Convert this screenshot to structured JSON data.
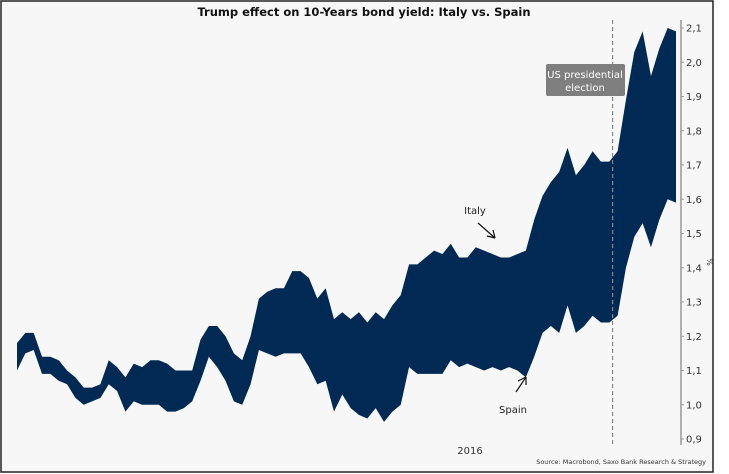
{
  "chart_data": {
    "type": "area",
    "title": "Trump effect on 10-Years bond yield: Italy vs. Spain",
    "xlabel": "",
    "ylabel": "%",
    "x_tick_labels": [
      "2016"
    ],
    "x_unit": "week index",
    "x": [
      0,
      1,
      2,
      3,
      4,
      5,
      6,
      7,
      8,
      9,
      10,
      11,
      12,
      13,
      14,
      15,
      16,
      17,
      18,
      19,
      20,
      21,
      22,
      23,
      24,
      25,
      26,
      27,
      28,
      29,
      30,
      31,
      32,
      33,
      34,
      35,
      36,
      37,
      38,
      39,
      40,
      41,
      42,
      43,
      44,
      45,
      46,
      47,
      48,
      49,
      50,
      51,
      52,
      53,
      54,
      55,
      56,
      57,
      58,
      59,
      60,
      61,
      62,
      63,
      64,
      65,
      66,
      67,
      68,
      69,
      70,
      71,
      72,
      73,
      74,
      75,
      76,
      77,
      78,
      79
    ],
    "ylim": [
      0.9,
      2.1
    ],
    "y_ticks": [
      "0,9",
      "1,0",
      "1,1",
      "1,2",
      "1,3",
      "1,4",
      "1,5",
      "1,6",
      "1,7",
      "1,8",
      "1,9",
      "2,0",
      "2,1"
    ],
    "y_tick_values": [
      0.9,
      1.0,
      1.1,
      1.2,
      1.3,
      1.4,
      1.5,
      1.6,
      1.7,
      1.8,
      1.9,
      2.0,
      2.1
    ],
    "series": [
      {
        "name": "Italy",
        "values": [
          1.18,
          1.21,
          1.21,
          1.14,
          1.14,
          1.13,
          1.1,
          1.08,
          1.05,
          1.05,
          1.06,
          1.13,
          1.11,
          1.08,
          1.12,
          1.11,
          1.13,
          1.13,
          1.12,
          1.1,
          1.1,
          1.1,
          1.19,
          1.23,
          1.23,
          1.2,
          1.15,
          1.13,
          1.2,
          1.31,
          1.33,
          1.34,
          1.34,
          1.39,
          1.39,
          1.37,
          1.31,
          1.34,
          1.25,
          1.27,
          1.25,
          1.27,
          1.24,
          1.27,
          1.25,
          1.29,
          1.32,
          1.41,
          1.41,
          1.43,
          1.45,
          1.44,
          1.47,
          1.43,
          1.43,
          1.46,
          1.45,
          1.44,
          1.43,
          1.43,
          1.44,
          1.45,
          1.54,
          1.61,
          1.65,
          1.68,
          1.75,
          1.67,
          1.7,
          1.74,
          1.71,
          1.71,
          1.74,
          1.89,
          2.03,
          2.09,
          1.96,
          2.04,
          2.1,
          2.09
        ]
      },
      {
        "name": "Spain",
        "values": [
          1.1,
          1.15,
          1.16,
          1.09,
          1.09,
          1.07,
          1.06,
          1.02,
          1.0,
          1.01,
          1.02,
          1.06,
          1.04,
          0.98,
          1.01,
          1.0,
          1.0,
          1.0,
          0.98,
          0.98,
          0.99,
          1.01,
          1.07,
          1.14,
          1.11,
          1.07,
          1.01,
          1.0,
          1.06,
          1.16,
          1.15,
          1.14,
          1.15,
          1.15,
          1.15,
          1.11,
          1.06,
          1.07,
          0.98,
          1.03,
          0.99,
          0.97,
          0.96,
          0.99,
          0.95,
          0.98,
          1.0,
          1.11,
          1.09,
          1.09,
          1.09,
          1.09,
          1.13,
          1.11,
          1.12,
          1.11,
          1.1,
          1.11,
          1.1,
          1.11,
          1.1,
          1.08,
          1.14,
          1.21,
          1.23,
          1.21,
          1.29,
          1.21,
          1.23,
          1.26,
          1.24,
          1.24,
          1.26,
          1.4,
          1.49,
          1.53,
          1.46,
          1.54,
          1.6,
          1.59
        ]
      }
    ],
    "fill_color": "#002a54",
    "event_line": {
      "x": 72,
      "label": "US presidential election"
    },
    "annotations": {
      "italy": "Italy",
      "spain": "Spain"
    },
    "source": "Source: Macrobond, Saxo Bank Research & Strategy",
    "grid": false,
    "legend": "none"
  }
}
